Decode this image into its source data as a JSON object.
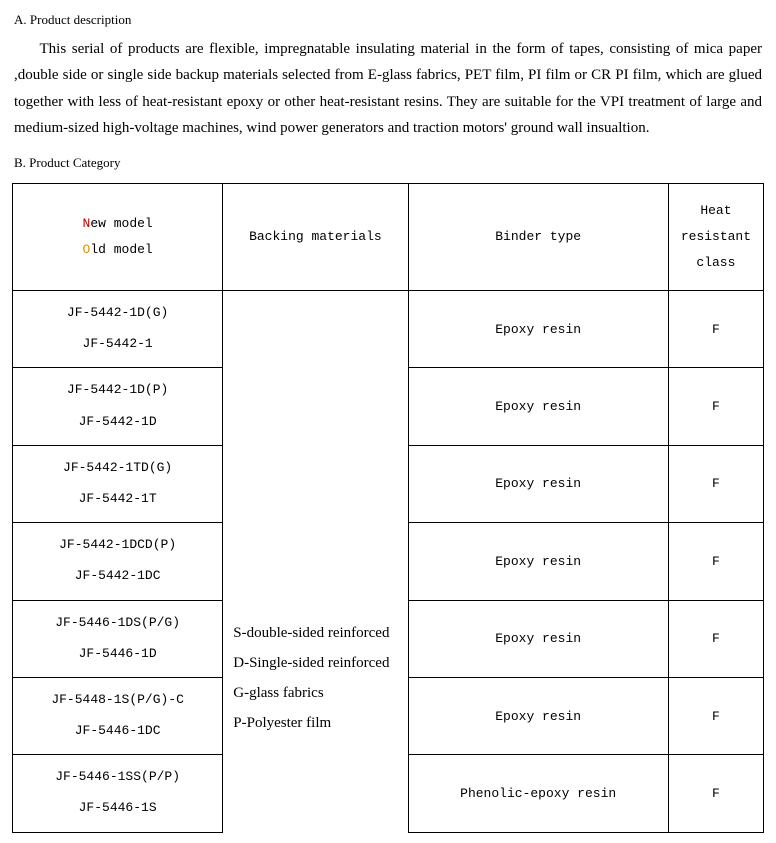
{
  "section_a": {
    "heading": "A. Product description",
    "paragraph": "This serial of products are flexible, impregnatable insulating material in the form of tapes, consisting of mica paper ,double side or single side backup materials selected from E-glass fabrics, PET film, PI film or CR PI film, which are glued together with less of heat-resistant epoxy or other heat-resistant resins. They are suitable for the VPI treatment of large and medium-sized high-voltage machines, wind power generators and traction motors' ground wall insualtion."
  },
  "section_b": {
    "heading": "B. Product Category"
  },
  "table": {
    "header": {
      "model_new_prefix": "N",
      "model_new_rest": "ew model",
      "model_old_prefix": "O",
      "model_old_rest": "ld model",
      "backing": "Backing materials",
      "binder": "Binder type",
      "heat": "Heat resistant class"
    },
    "backing_lines": [
      "S-double-sided reinforced",
      "D-Single-sided reinforced",
      "G-glass fabrics",
      "P-Polyester film"
    ],
    "rows": [
      {
        "new": "JF-5442-1D(G)",
        "old": "JF-5442-1",
        "binder": "Epoxy resin",
        "heat": "F"
      },
      {
        "new": "JF-5442-1D(P)",
        "old": "JF-5442-1D",
        "binder": "Epoxy resin",
        "heat": "F"
      },
      {
        "new": "JF-5442-1TD(G)",
        "old": "JF-5442-1T",
        "binder": "Epoxy resin",
        "heat": "F"
      },
      {
        "new": "JF-5442-1DCD(P)",
        "old": "JF-5442-1DC",
        "binder": "Epoxy resin",
        "heat": "F"
      },
      {
        "new": "JF-5446-1DS(P/G)",
        "old": "JF-5446-1D",
        "binder": "Epoxy resin",
        "heat": "F"
      },
      {
        "new": "JF-5448-1S(P/G)-C",
        "old": "JF-5446-1DC",
        "binder": "Epoxy resin",
        "heat": "F"
      },
      {
        "new": "JF-5446-1SS(P/P)",
        "old": "JF-5446-1S",
        "binder": "Phenolic-epoxy resin",
        "heat": "F"
      }
    ]
  },
  "style": {
    "highlight_new_color": "#c00000",
    "highlight_old_color": "#d89600",
    "body_font": "Times New Roman",
    "table_font": "Courier New",
    "border_color": "#000000",
    "background_color": "#ffffff"
  }
}
